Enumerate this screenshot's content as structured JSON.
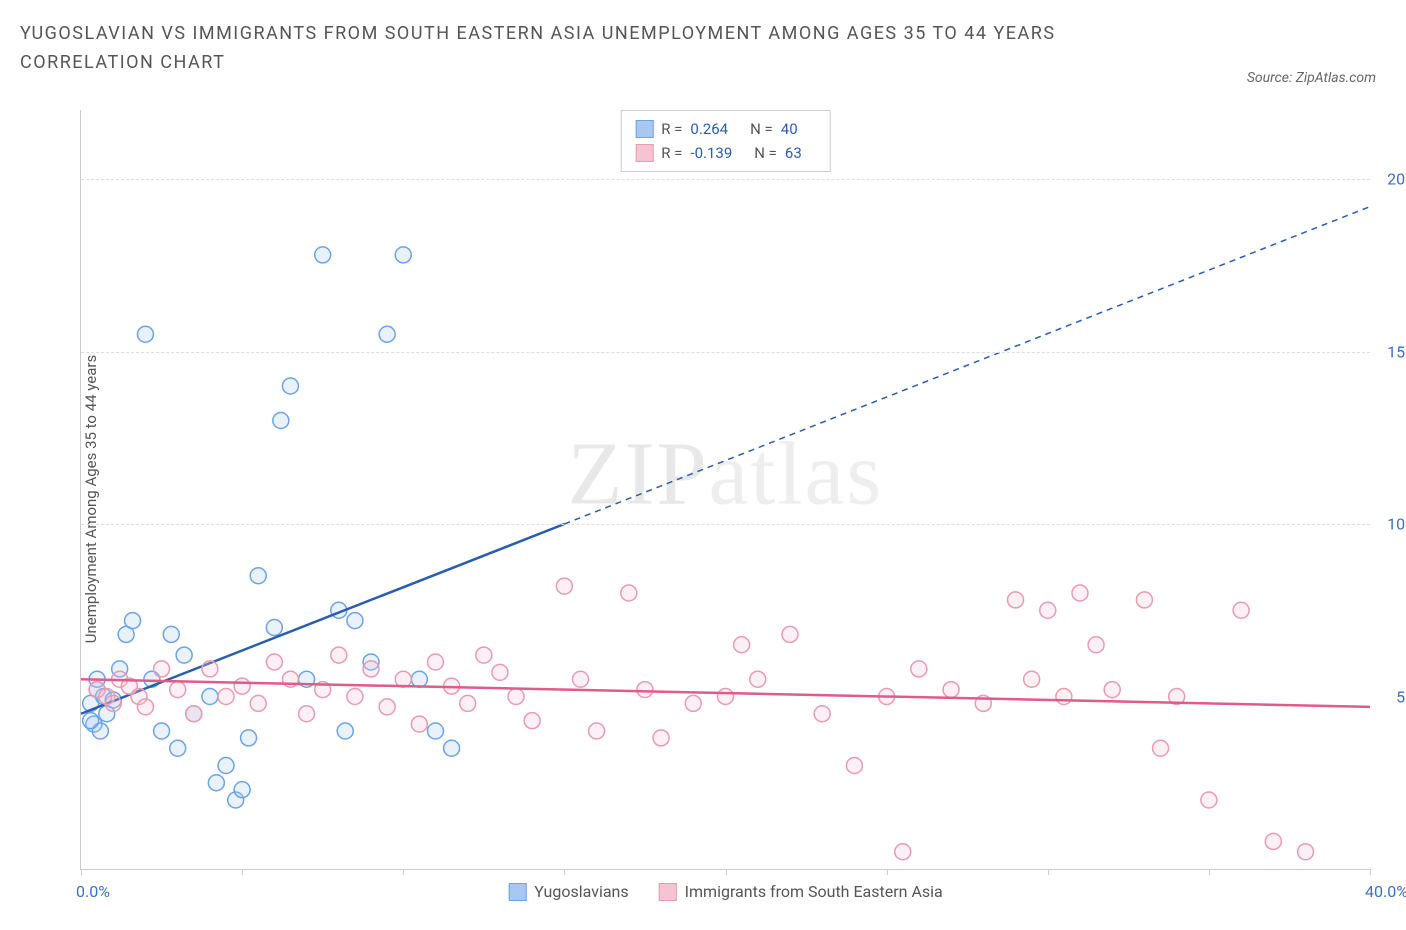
{
  "title": "YUGOSLAVIAN VS IMMIGRANTS FROM SOUTH EASTERN ASIA UNEMPLOYMENT AMONG AGES 35 TO 44 YEARS CORRELATION CHART",
  "source": "Source: ZipAtlas.com",
  "y_label": "Unemployment Among Ages 35 to 44 years",
  "watermark_a": "ZIP",
  "watermark_b": "atlas",
  "chart": {
    "type": "scatter",
    "xlim": [
      0,
      40
    ],
    "ylim": [
      0,
      22
    ],
    "x_ticks": [
      0,
      5,
      10,
      15,
      20,
      25,
      30,
      35,
      40
    ],
    "x_tick_labels": {
      "0": "0.0%",
      "40": "40.0%"
    },
    "y_gridlines": [
      10,
      15,
      20
    ],
    "y_tick_labels": {
      "5": "5.0%",
      "10": "10.0%",
      "15": "15.0%",
      "20": "20.0%"
    },
    "background_color": "#ffffff",
    "grid_color": "#dddddd",
    "axis_color": "#cccccc",
    "tick_label_color": "#3b6fc9",
    "marker_radius": 8,
    "marker_stroke_width": 1.5,
    "marker_fill_opacity": 0.25
  },
  "series": [
    {
      "key": "yugo",
      "name": "Yugoslavians",
      "color_stroke": "#6aa3e8",
      "color_fill": "#a8c8f0",
      "line_color": "#2a5db0",
      "R": "0.264",
      "N": "40",
      "trend": {
        "x1": 0,
        "y1": 4.5,
        "x2": 15,
        "y2": 10.0,
        "x_dash_to": 40,
        "y_dash_to": 19.2
      },
      "points": [
        [
          0.3,
          4.8
        ],
        [
          0.5,
          5.2
        ],
        [
          0.4,
          4.2
        ],
        [
          0.6,
          4.0
        ],
        [
          0.8,
          4.5
        ],
        [
          0.5,
          5.5
        ],
        [
          0.7,
          5.0
        ],
        [
          0.3,
          4.3
        ],
        [
          1.0,
          4.9
        ],
        [
          1.2,
          5.8
        ],
        [
          1.4,
          6.8
        ],
        [
          1.6,
          7.2
        ],
        [
          2.0,
          15.5
        ],
        [
          2.2,
          5.5
        ],
        [
          2.5,
          4.0
        ],
        [
          2.8,
          6.8
        ],
        [
          3.0,
          3.5
        ],
        [
          3.2,
          6.2
        ],
        [
          3.5,
          4.5
        ],
        [
          4.0,
          5.0
        ],
        [
          4.2,
          2.5
        ],
        [
          4.5,
          3.0
        ],
        [
          4.8,
          2.0
        ],
        [
          5.0,
          2.3
        ],
        [
          5.2,
          3.8
        ],
        [
          5.5,
          8.5
        ],
        [
          6.0,
          7.0
        ],
        [
          6.2,
          13.0
        ],
        [
          6.5,
          14.0
        ],
        [
          7.0,
          5.5
        ],
        [
          7.5,
          17.8
        ],
        [
          8.0,
          7.5
        ],
        [
          8.2,
          4.0
        ],
        [
          8.5,
          7.2
        ],
        [
          9.0,
          6.0
        ],
        [
          9.5,
          15.5
        ],
        [
          10.0,
          17.8
        ],
        [
          10.5,
          5.5
        ],
        [
          11.0,
          4.0
        ],
        [
          11.5,
          3.5
        ]
      ]
    },
    {
      "key": "sea",
      "name": "Immigrants from South Eastern Asia",
      "color_stroke": "#e89ab0",
      "color_fill": "#f5c4d2",
      "line_color": "#e05a8a",
      "R": "-0.139",
      "N": "63",
      "trend": {
        "x1": 0,
        "y1": 5.5,
        "x2": 40,
        "y2": 4.7
      },
      "points": [
        [
          0.5,
          5.2
        ],
        [
          0.8,
          5.0
        ],
        [
          1.0,
          4.8
        ],
        [
          1.2,
          5.5
        ],
        [
          1.5,
          5.3
        ],
        [
          1.8,
          5.0
        ],
        [
          2.0,
          4.7
        ],
        [
          2.5,
          5.8
        ],
        [
          3.0,
          5.2
        ],
        [
          3.5,
          4.5
        ],
        [
          4.0,
          5.8
        ],
        [
          4.5,
          5.0
        ],
        [
          5.0,
          5.3
        ],
        [
          5.5,
          4.8
        ],
        [
          6.0,
          6.0
        ],
        [
          6.5,
          5.5
        ],
        [
          7.0,
          4.5
        ],
        [
          7.5,
          5.2
        ],
        [
          8.0,
          6.2
        ],
        [
          8.5,
          5.0
        ],
        [
          9.0,
          5.8
        ],
        [
          9.5,
          4.7
        ],
        [
          10.0,
          5.5
        ],
        [
          10.5,
          4.2
        ],
        [
          11.0,
          6.0
        ],
        [
          11.5,
          5.3
        ],
        [
          12.0,
          4.8
        ],
        [
          12.5,
          6.2
        ],
        [
          13.0,
          5.7
        ],
        [
          13.5,
          5.0
        ],
        [
          14.0,
          4.3
        ],
        [
          15.0,
          8.2
        ],
        [
          15.5,
          5.5
        ],
        [
          16.0,
          4.0
        ],
        [
          17.0,
          8.0
        ],
        [
          17.5,
          5.2
        ],
        [
          18.0,
          3.8
        ],
        [
          19.0,
          4.8
        ],
        [
          20.0,
          5.0
        ],
        [
          20.5,
          6.5
        ],
        [
          21.0,
          5.5
        ],
        [
          22.0,
          6.8
        ],
        [
          23.0,
          4.5
        ],
        [
          24.0,
          3.0
        ],
        [
          25.0,
          5.0
        ],
        [
          25.5,
          0.5
        ],
        [
          26.0,
          5.8
        ],
        [
          27.0,
          5.2
        ],
        [
          28.0,
          4.8
        ],
        [
          29.0,
          7.8
        ],
        [
          29.5,
          5.5
        ],
        [
          30.0,
          7.5
        ],
        [
          30.5,
          5.0
        ],
        [
          31.0,
          8.0
        ],
        [
          31.5,
          6.5
        ],
        [
          32.0,
          5.2
        ],
        [
          33.0,
          7.8
        ],
        [
          33.5,
          3.5
        ],
        [
          34.0,
          5.0
        ],
        [
          35.0,
          2.0
        ],
        [
          36.0,
          7.5
        ],
        [
          37.0,
          0.8
        ],
        [
          38.0,
          0.5
        ]
      ]
    }
  ],
  "legend_top": {
    "r_label": "R =",
    "n_label": "N ="
  }
}
